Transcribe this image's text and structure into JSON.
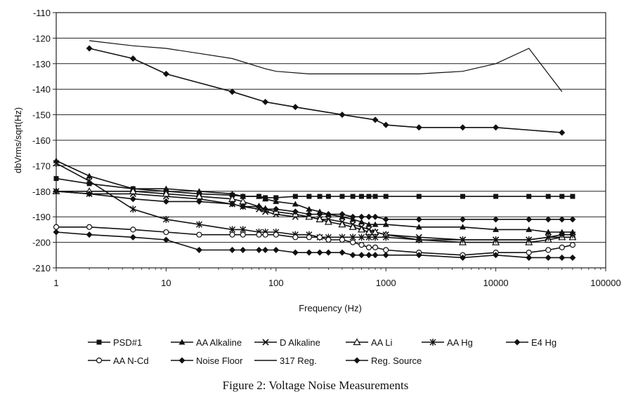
{
  "caption": "Figure 2: Voltage Noise Measurements",
  "chart_data": {
    "type": "line",
    "title": "",
    "xlabel": "Frequency (Hz)",
    "ylabel": "dbVrms/sqrt(Hz)",
    "xscale": "log",
    "xlim": [
      1,
      100000
    ],
    "ylim": [
      -210,
      -110
    ],
    "xticks": [
      "1",
      "10",
      "100",
      "1000",
      "10000",
      "100000"
    ],
    "yticks": [
      "-110",
      "-120",
      "-130",
      "-140",
      "-150",
      "-160",
      "-170",
      "-180",
      "-190",
      "-200",
      "-210"
    ],
    "grid": "horizontal",
    "legend_position": "bottom",
    "series": [
      {
        "name": "PSD#1",
        "marker": "square",
        "x": [
          1,
          2,
          5,
          10,
          20,
          40,
          50,
          70,
          80,
          100,
          150,
          200,
          250,
          300,
          400,
          500,
          600,
          700,
          800,
          1000,
          2000,
          5000,
          10000,
          20000,
          30000,
          40000,
          50000
        ],
        "y": [
          -175,
          -177,
          -179,
          -180,
          -181,
          -181.5,
          -182,
          -182,
          -182.5,
          -182.5,
          -182,
          -182,
          -182,
          -182,
          -182,
          -182,
          -182,
          -182,
          -182,
          -182,
          -182,
          -182,
          -182,
          -182,
          -182,
          -182,
          -182
        ]
      },
      {
        "name": "AA Alkaline",
        "marker": "triangle-filled",
        "x": [
          1,
          2,
          5,
          10,
          20,
          40,
          50,
          70,
          80,
          100,
          150,
          200,
          250,
          300,
          400,
          500,
          600,
          700,
          800,
          1000,
          2000,
          5000,
          10000,
          20000,
          30000,
          40000,
          50000
        ],
        "y": [
          -168,
          -174,
          -179,
          -179,
          -180,
          -181,
          -182,
          -182,
          -183,
          -184,
          -185,
          -187,
          -188,
          -189,
          -190,
          -191,
          -192,
          -193,
          -193,
          -193,
          -194,
          -194,
          -195,
          -195,
          -196,
          -196,
          -196
        ]
      },
      {
        "name": "D Alkaline",
        "marker": "x",
        "x": [
          1,
          2,
          5,
          10,
          20,
          40,
          50,
          70,
          80,
          100,
          150,
          200,
          250,
          300,
          400,
          500,
          600,
          700,
          800,
          1000,
          2000,
          5000,
          10000,
          20000,
          30000,
          40000,
          50000
        ],
        "y": [
          -180,
          -181,
          -181,
          -182,
          -183,
          -185,
          -186,
          -187,
          -188,
          -189,
          -190,
          -190,
          -191,
          -191,
          -192,
          -193,
          -194,
          -195,
          -196,
          -197,
          -198,
          -199,
          -199,
          -199,
          -198,
          -198,
          -198
        ]
      },
      {
        "name": "AA Li",
        "marker": "triangle-open",
        "x": [
          1,
          2,
          5,
          10,
          20,
          40,
          50,
          70,
          80,
          100,
          150,
          200,
          250,
          300,
          400,
          500,
          600,
          700,
          800,
          1000,
          2000,
          5000,
          10000,
          20000,
          30000,
          40000,
          50000
        ],
        "y": [
          -180,
          -180,
          -180,
          -181,
          -182,
          -183,
          -184,
          -186,
          -187,
          -188,
          -189,
          -190,
          -191,
          -192,
          -193,
          -194,
          -195,
          -196,
          -196,
          -197,
          -199,
          -200,
          -200,
          -200,
          -199,
          -198,
          -198
        ]
      },
      {
        "name": "AA Hg",
        "marker": "star",
        "x": [
          1,
          2,
          5,
          10,
          20,
          40,
          50,
          70,
          80,
          100,
          150,
          200,
          250,
          300,
          400,
          500,
          600,
          700,
          800,
          1000,
          2000,
          5000,
          10000,
          20000,
          30000,
          40000,
          50000
        ],
        "y": [
          -169,
          -176,
          -187,
          -191,
          -193,
          -195,
          -195,
          -196,
          -196,
          -196,
          -197,
          -197,
          -198,
          -198,
          -198,
          -198,
          -198,
          -198,
          -198,
          -198,
          -199,
          -199,
          -199,
          -199,
          -198,
          -197,
          -197
        ]
      },
      {
        "name": "E4 Hg",
        "marker": "diamond",
        "x": [
          1,
          2,
          5,
          10,
          20,
          40,
          50,
          70,
          80,
          100,
          150,
          200,
          250,
          300,
          400,
          500,
          600,
          700,
          800,
          1000,
          2000,
          5000,
          10000,
          20000,
          30000,
          40000,
          50000
        ],
        "y": [
          -180,
          -181,
          -183,
          -184,
          -184,
          -185,
          -186,
          -186,
          -187,
          -187,
          -188,
          -189,
          -189,
          -189,
          -189,
          -190,
          -190,
          -190,
          -190,
          -191,
          -191,
          -191,
          -191,
          -191,
          -191,
          -191,
          -191
        ]
      },
      {
        "name": "AA N-Cd",
        "marker": "circle-open",
        "x": [
          1,
          2,
          5,
          10,
          20,
          40,
          50,
          70,
          80,
          100,
          150,
          200,
          250,
          300,
          400,
          500,
          600,
          700,
          800,
          1000,
          2000,
          5000,
          10000,
          20000,
          30000,
          40000,
          50000
        ],
        "y": [
          -194,
          -194,
          -195,
          -196,
          -197,
          -197,
          -197,
          -197,
          -197,
          -197,
          -198,
          -198,
          -198,
          -199,
          -199,
          -200,
          -201,
          -202,
          -202,
          -203,
          -204,
          -205,
          -204,
          -204,
          -203,
          -202,
          -201
        ]
      },
      {
        "name": "Noise Floor",
        "marker": "diamond",
        "x": [
          1,
          2,
          5,
          10,
          20,
          40,
          50,
          70,
          80,
          100,
          150,
          200,
          250,
          300,
          400,
          500,
          600,
          700,
          800,
          1000,
          2000,
          5000,
          10000,
          20000,
          30000,
          40000,
          50000
        ],
        "y": [
          -196,
          -197,
          -198,
          -199,
          -203,
          -203,
          -203,
          -203,
          -203,
          -203,
          -204,
          -204,
          -204,
          -204,
          -204,
          -205,
          -205,
          -205,
          -205,
          -205,
          -205,
          -206,
          -205,
          -206,
          -206,
          -206,
          -206
        ]
      },
      {
        "name": "317 Reg.",
        "marker": "none",
        "x": [
          2,
          5,
          10,
          20,
          40,
          80,
          100,
          200,
          500,
          1000,
          2000,
          5000,
          10000,
          20000,
          40000
        ],
        "y": [
          -121,
          -123,
          -124,
          -126,
          -128,
          -132,
          -133,
          -134,
          -134,
          -134,
          -134,
          -133,
          -130,
          -124,
          -141
        ]
      },
      {
        "name": "Reg. Source",
        "marker": "diamond",
        "x": [
          2,
          5,
          10,
          40,
          80,
          150,
          400,
          800,
          1000,
          2000,
          5000,
          10000,
          40000
        ],
        "y": [
          -124,
          -128,
          -134,
          -141,
          -145,
          -147,
          -150,
          -152,
          -154,
          -155,
          -155,
          -155,
          -157
        ]
      }
    ]
  }
}
